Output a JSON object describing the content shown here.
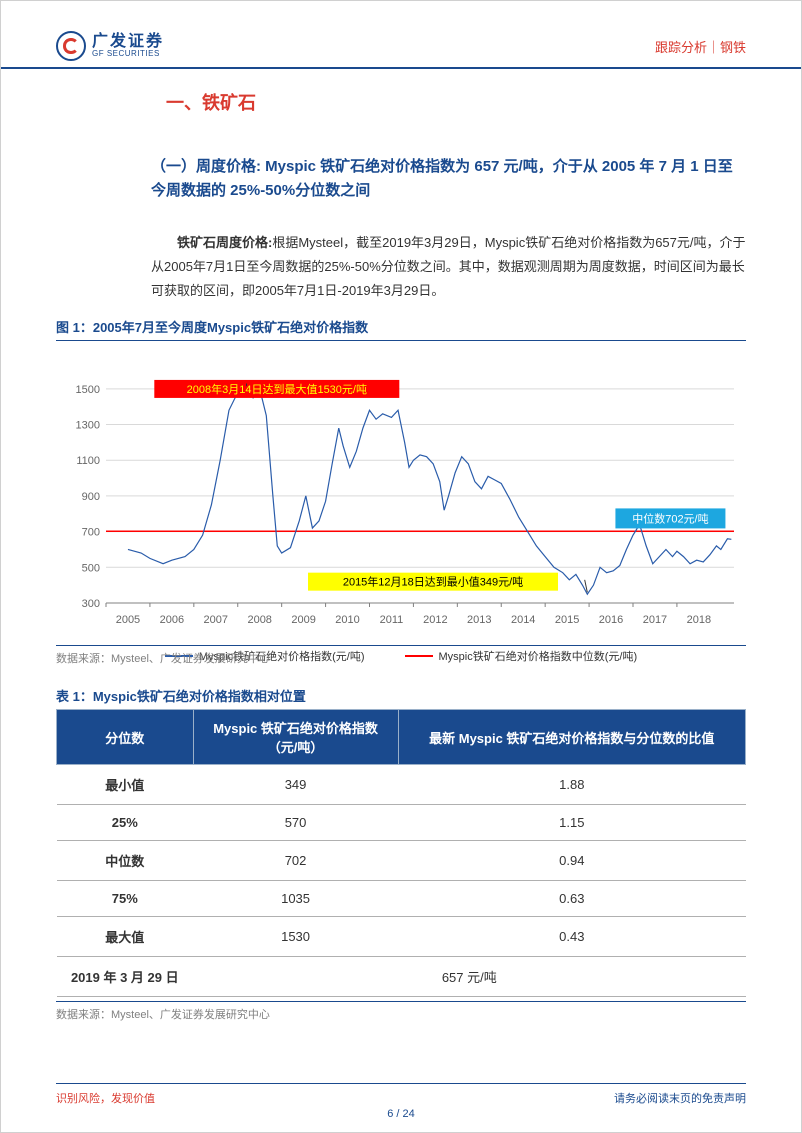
{
  "header": {
    "logo_cn": "广发证券",
    "logo_en": "GF SECURITIES",
    "right_text": "跟踪分析｜钢铁"
  },
  "section": {
    "title": "一、铁矿石",
    "subsection": "（一）周度价格: Myspic 铁矿石绝对价格指数为 657 元/吨，介于从 2005 年 7 月 1 日至今周数据的 25%-50%分位数之间",
    "para_label": "铁矿石周度价格:",
    "para_body": "根据Mysteel，截至2019年3月29日，Myspic铁矿石绝对价格指数为657元/吨，介于从2005年7月1日至今周数据的25%-50%分位数之间。其中，数据观测周期为周度数据，时间区间为最长可获取的区间，即2005年7月1日-2019年3月29日。"
  },
  "figure": {
    "title": "图 1：2005年7月至今周度Myspic铁矿石绝对价格指数",
    "source": "数据来源：Mysteel、广发证券发展研究中心",
    "chart": {
      "type": "line",
      "x_years": [
        "2005",
        "2006",
        "2007",
        "2008",
        "2009",
        "2010",
        "2011",
        "2012",
        "2013",
        "2014",
        "2015",
        "2016",
        "2017",
        "2018"
      ],
      "ylim": [
        300,
        1600
      ],
      "yticks": [
        300,
        500,
        700,
        900,
        1100,
        1300,
        1500
      ],
      "line_color": "#2a5caa",
      "median_line_color": "#ff0000",
      "median_value": 702,
      "background_color": "#ffffff",
      "grid_color": "#d9d9d9",
      "axis_color": "#808080",
      "line_width": 1.2,
      "series": [
        [
          2005.5,
          600
        ],
        [
          2005.8,
          580
        ],
        [
          2006.0,
          550
        ],
        [
          2006.3,
          520
        ],
        [
          2006.5,
          540
        ],
        [
          2006.8,
          560
        ],
        [
          2007.0,
          600
        ],
        [
          2007.2,
          680
        ],
        [
          2007.4,
          850
        ],
        [
          2007.6,
          1100
        ],
        [
          2007.8,
          1380
        ],
        [
          2008.0,
          1480
        ],
        [
          2008.2,
          1530
        ],
        [
          2008.35,
          1450
        ],
        [
          2008.5,
          1500
        ],
        [
          2008.65,
          1350
        ],
        [
          2008.8,
          900
        ],
        [
          2008.9,
          620
        ],
        [
          2009.0,
          580
        ],
        [
          2009.2,
          610
        ],
        [
          2009.4,
          760
        ],
        [
          2009.55,
          900
        ],
        [
          2009.7,
          720
        ],
        [
          2009.85,
          760
        ],
        [
          2010.0,
          870
        ],
        [
          2010.15,
          1080
        ],
        [
          2010.3,
          1280
        ],
        [
          2010.4,
          1180
        ],
        [
          2010.55,
          1060
        ],
        [
          2010.7,
          1150
        ],
        [
          2010.85,
          1280
        ],
        [
          2011.0,
          1380
        ],
        [
          2011.15,
          1330
        ],
        [
          2011.3,
          1360
        ],
        [
          2011.5,
          1340
        ],
        [
          2011.65,
          1380
        ],
        [
          2011.8,
          1200
        ],
        [
          2011.9,
          1060
        ],
        [
          2012.0,
          1100
        ],
        [
          2012.15,
          1130
        ],
        [
          2012.3,
          1120
        ],
        [
          2012.45,
          1080
        ],
        [
          2012.6,
          980
        ],
        [
          2012.7,
          820
        ],
        [
          2012.8,
          900
        ],
        [
          2012.95,
          1030
        ],
        [
          2013.1,
          1120
        ],
        [
          2013.25,
          1080
        ],
        [
          2013.4,
          980
        ],
        [
          2013.55,
          940
        ],
        [
          2013.7,
          1010
        ],
        [
          2013.85,
          990
        ],
        [
          2014.0,
          970
        ],
        [
          2014.2,
          880
        ],
        [
          2014.4,
          780
        ],
        [
          2014.6,
          700
        ],
        [
          2014.8,
          620
        ],
        [
          2015.0,
          560
        ],
        [
          2015.2,
          500
        ],
        [
          2015.4,
          470
        ],
        [
          2015.55,
          430
        ],
        [
          2015.7,
          460
        ],
        [
          2015.85,
          400
        ],
        [
          2015.96,
          349
        ],
        [
          2016.1,
          400
        ],
        [
          2016.25,
          500
        ],
        [
          2016.4,
          470
        ],
        [
          2016.55,
          480
        ],
        [
          2016.7,
          510
        ],
        [
          2016.85,
          600
        ],
        [
          2017.0,
          680
        ],
        [
          2017.15,
          740
        ],
        [
          2017.3,
          620
        ],
        [
          2017.45,
          520
        ],
        [
          2017.6,
          560
        ],
        [
          2017.75,
          600
        ],
        [
          2017.9,
          560
        ],
        [
          2018.0,
          590
        ],
        [
          2018.15,
          560
        ],
        [
          2018.3,
          520
        ],
        [
          2018.45,
          540
        ],
        [
          2018.6,
          530
        ],
        [
          2018.75,
          570
        ],
        [
          2018.9,
          620
        ],
        [
          2019.0,
          600
        ],
        [
          2019.15,
          660
        ],
        [
          2019.24,
          657
        ]
      ],
      "annotations": {
        "max_box": {
          "text": "2008年3月14日达到最大值1530元/吨",
          "bg": "#ff0000",
          "fg": "#ffff00"
        },
        "min_box": {
          "text": "2015年12月18日达到最小值349元/吨",
          "bg": "#ffff00",
          "fg": "#000000"
        },
        "median_box": {
          "text": "中位数702元/吨",
          "bg": "#1da7e0",
          "fg": "#ffffff"
        }
      },
      "legend": {
        "series_label": "Myspic铁矿石绝对价格指数(元/吨)",
        "median_label": "Myspic铁矿石绝对价格指数中位数(元/吨)"
      }
    }
  },
  "table": {
    "title": "表 1：Myspic铁矿石绝对价格指数相对位置",
    "source": "数据来源：Mysteel、广发证券发展研究中心",
    "header_bg": "#1a4a8e",
    "header_fg": "#ffffff",
    "columns": [
      "分位数",
      "Myspic 铁矿石绝对价格指数\n（元/吨）",
      "最新 Myspic 铁矿石绝对价格指数与分位数的比值"
    ],
    "rows": [
      [
        "最小值",
        "349",
        "1.88"
      ],
      [
        "25%",
        "570",
        "1.15"
      ],
      [
        "中位数",
        "702",
        "0.94"
      ],
      [
        "75%",
        "1035",
        "0.63"
      ],
      [
        "最大值",
        "1530",
        "0.43"
      ]
    ],
    "footer_row": {
      "label": "2019 年 3 月 29 日",
      "value": "657 元/吨"
    }
  },
  "footer": {
    "left": "识别风险，发现价值",
    "right": "请务必阅读末页的免责声明",
    "page": "6 / 24"
  }
}
